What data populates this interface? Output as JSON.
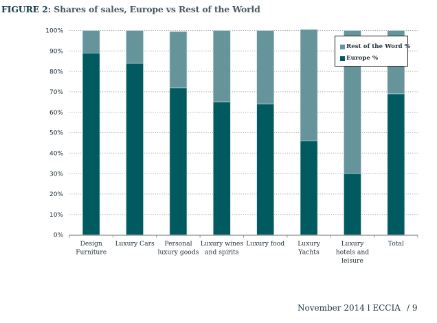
{
  "figure": {
    "label": "FIGURE 2",
    "title": ": Shares of sales, Europe vs Rest of the World"
  },
  "chart_data": {
    "type": "bar",
    "stacked": true,
    "title": "FIGURE 2: Shares of sales, Europe vs Rest of the World",
    "xlabel": "",
    "ylabel": "",
    "ylim": [
      0,
      100
    ],
    "yticks": [
      "0%",
      "10%",
      "20%",
      "30%",
      "40%",
      "50%",
      "60%",
      "70%",
      "80%",
      "90%",
      "100%"
    ],
    "grid": "horizontal-dotted",
    "legend_position": "top-right",
    "categories": [
      [
        "Design",
        "Furniture"
      ],
      [
        "Luxury Cars"
      ],
      [
        "Personal",
        "luxury goods"
      ],
      [
        "Luxury wines",
        "and spirits"
      ],
      [
        "Luxury food"
      ],
      [
        "Luxury",
        "Yachts"
      ],
      [
        "Luxury",
        "hotels and",
        "leisure"
      ],
      [
        "Total"
      ]
    ],
    "series": [
      {
        "name": "Europe %",
        "color": "#005a5f",
        "values": [
          89,
          84,
          72,
          65,
          64,
          46,
          30,
          69
        ]
      },
      {
        "name": "Rest of the Word %",
        "color": "#65959a",
        "values": [
          11,
          16,
          27.5,
          35,
          36,
          54.5,
          70,
          31
        ]
      }
    ],
    "legend": [
      "Rest of the Word %",
      "Europe %"
    ]
  },
  "footer": {
    "text": "November 2014 l ECCIA",
    "page": "/ 9"
  }
}
